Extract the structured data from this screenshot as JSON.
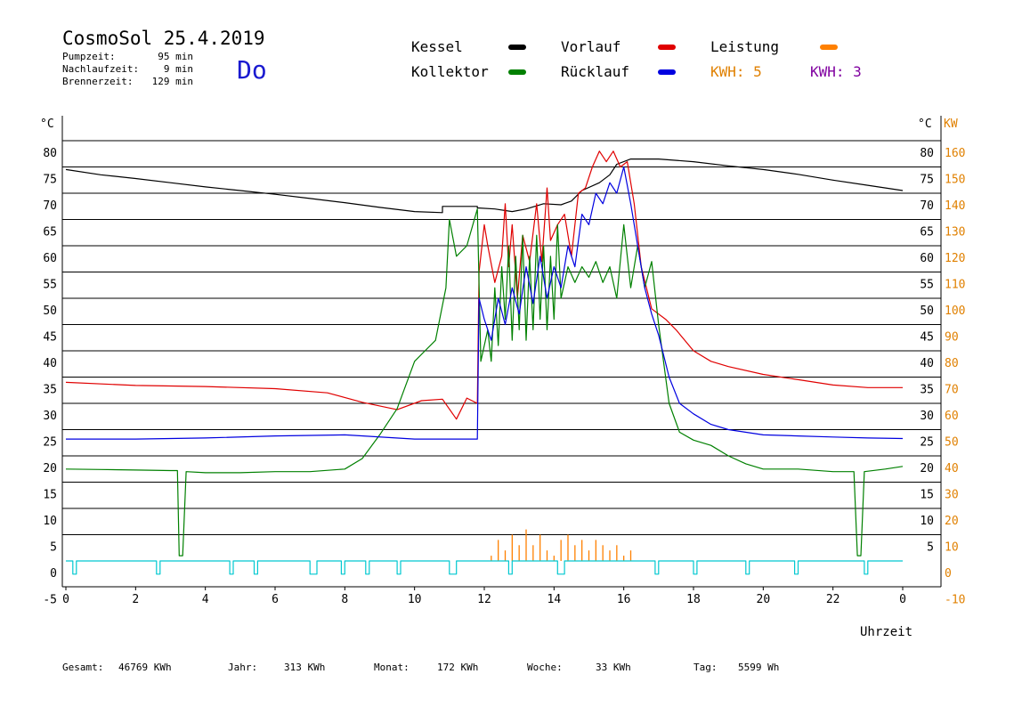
{
  "header": {
    "title": "CosmoSol 25.4.2019",
    "weekday": "Do",
    "stats": [
      {
        "label": "Pumpzeit:",
        "value": "95 min"
      },
      {
        "label": "Nachlaufzeit:",
        "value": "9 min"
      },
      {
        "label": "Brennerzeit:",
        "value": "129 min"
      }
    ]
  },
  "legend": [
    {
      "label": "Kessel",
      "color": "#000000",
      "label_color": "#000000"
    },
    {
      "label": "Vorlauf",
      "color": "#e00000",
      "label_color": "#000000"
    },
    {
      "label": "Leistung",
      "color": "#ff8000",
      "label_color": "#000000"
    },
    {
      "label": "Kollektor",
      "color": "#008000",
      "label_color": "#000000"
    },
    {
      "label": "Rücklauf",
      "color": "#0000e0",
      "label_color": "#000000"
    },
    {
      "label": "KWH: 5",
      "color": "#e08000",
      "label_color": "#e08000"
    },
    {
      "label": "KWH: 3",
      "color": "#8000a0",
      "label_color": "#8000a0"
    }
  ],
  "footer": [
    {
      "label": "Gesamt:",
      "value": "46769 KWh"
    },
    {
      "label": "Jahr:",
      "value": "313 KWh"
    },
    {
      "label": "Monat:",
      "value": "172 KWh"
    },
    {
      "label": "Woche:",
      "value": "33 KWh"
    },
    {
      "label": "Tag:",
      "value": "5599 Wh"
    }
  ],
  "chart_data": {
    "type": "line",
    "xlabel": "Uhrzeit",
    "ylabel_left": "°C",
    "ylabel_right_temp": "°C",
    "ylabel_right_power": "KW",
    "xlim": [
      0,
      24
    ],
    "ylim": [
      -5,
      80
    ],
    "y_ticks_left": [
      "-5",
      "0",
      "5",
      "10",
      "15",
      "20",
      "25",
      "30",
      "35",
      "40",
      "45",
      "50",
      "55",
      "60",
      "65",
      "70",
      "75",
      "80"
    ],
    "y_ticks_right_temp": [
      "5",
      "10",
      "15",
      "20",
      "25",
      "30",
      "35",
      "40",
      "45",
      "50",
      "55",
      "60",
      "65",
      "70",
      "75",
      "80"
    ],
    "y_ticks_right_power": [
      "-10",
      "0",
      "10",
      "20",
      "30",
      "40",
      "50",
      "60",
      "70",
      "80",
      "90",
      "100",
      "110",
      "120",
      "130",
      "140",
      "150",
      "160"
    ],
    "x_ticks": [
      "0",
      "2",
      "4",
      "6",
      "8",
      "10",
      "12",
      "14",
      "16",
      "18",
      "20",
      "22",
      "0"
    ],
    "grid": "horizontal",
    "series": [
      {
        "name": "Kessel",
        "color": "#000000",
        "x": [
          0,
          1,
          2,
          3,
          4,
          5,
          6,
          7,
          8,
          9,
          10,
          10.8,
          10.8,
          11.8,
          11.8,
          12.3,
          12.8,
          13.2,
          13.7,
          14.2,
          14.5,
          14.8,
          15.3,
          15.6,
          15.8,
          16.2,
          17,
          18,
          19,
          20,
          21,
          22,
          23,
          24
        ],
        "y": [
          74.5,
          73.5,
          72.8,
          72,
          71.2,
          70.5,
          69.8,
          69,
          68.2,
          67.3,
          66.5,
          66.3,
          67.5,
          67.5,
          67.2,
          67,
          66.5,
          67,
          68,
          67.8,
          68.5,
          70.5,
          72,
          73.5,
          75.5,
          76.5,
          76.5,
          76,
          75.2,
          74.5,
          73.6,
          72.5,
          71.5,
          70.5
        ]
      },
      {
        "name": "Vorlauf",
        "color": "#e00000",
        "x": [
          0,
          2,
          4,
          6,
          7.5,
          8.5,
          9.5,
          10.2,
          10.8,
          11.2,
          11.5,
          11.8,
          11.85,
          12,
          12.1,
          12.3,
          12.5,
          12.6,
          12.7,
          12.8,
          12.95,
          13.1,
          13.3,
          13.5,
          13.65,
          13.8,
          13.9,
          14.1,
          14.3,
          14.5,
          14.7,
          14.9,
          15.1,
          15.3,
          15.5,
          15.7,
          15.9,
          16.1,
          16.3,
          16.5,
          16.8,
          17.2,
          17.5,
          18,
          18.5,
          19,
          20,
          21,
          22,
          23,
          24
        ],
        "y": [
          34,
          33.4,
          33.2,
          32.8,
          32,
          30.2,
          28.8,
          30.5,
          30.8,
          27,
          31,
          30,
          55,
          64,
          60,
          53,
          58,
          68,
          56,
          64,
          50,
          62,
          57,
          68,
          57,
          71,
          61,
          64,
          66,
          58,
          70,
          71,
          75,
          78,
          76,
          78,
          75,
          76,
          68,
          56,
          48,
          46,
          44,
          40,
          38,
          37,
          35.5,
          34.5,
          33.5,
          33,
          33
        ]
      },
      {
        "name": "Kollektor",
        "color": "#008000",
        "x": [
          0,
          1,
          2,
          3,
          3.2,
          3.25,
          3.35,
          3.45,
          4,
          5,
          6,
          7,
          8,
          8.5,
          9,
          9.5,
          10,
          10.3,
          10.6,
          10.9,
          11,
          11.2,
          11.5,
          11.8,
          11.9,
          12.1,
          12.2,
          12.3,
          12.4,
          12.5,
          12.6,
          12.7,
          12.8,
          12.9,
          13,
          13.1,
          13.2,
          13.3,
          13.4,
          13.5,
          13.6,
          13.7,
          13.8,
          13.9,
          14,
          14.1,
          14.2,
          14.4,
          14.6,
          14.8,
          15,
          15.2,
          15.4,
          15.6,
          15.8,
          16,
          16.2,
          16.4,
          16.6,
          16.8,
          17,
          17.3,
          17.6,
          18,
          18.5,
          19,
          19.5,
          20,
          21,
          22,
          22.6,
          22.7,
          22.8,
          22.9,
          23.5,
          24
        ],
        "y": [
          17.5,
          17.4,
          17.3,
          17.2,
          17.2,
          1,
          1,
          17,
          16.8,
          16.8,
          17,
          17,
          17.5,
          19.5,
          24,
          29,
          38,
          40,
          42,
          52,
          65,
          58,
          60,
          67,
          38,
          44,
          38,
          52,
          41,
          56,
          46,
          60,
          42,
          58,
          44,
          62,
          42,
          58,
          44,
          62,
          46,
          60,
          44,
          58,
          46,
          64,
          50,
          56,
          53,
          56,
          54,
          57,
          53,
          56,
          50,
          64,
          52,
          60,
          52,
          57,
          45,
          30,
          24.5,
          23,
          22,
          20,
          18.5,
          17.5,
          17.5,
          17,
          17,
          1,
          1,
          17,
          17.5,
          18
        ]
      },
      {
        "name": "Rücklauf",
        "color": "#0000e0",
        "x": [
          0,
          2,
          4,
          6,
          8,
          10,
          11,
          11.8,
          11.85,
          12,
          12.2,
          12.4,
          12.6,
          12.8,
          13,
          13.2,
          13.4,
          13.6,
          13.8,
          14,
          14.2,
          14.4,
          14.6,
          14.8,
          15,
          15.2,
          15.4,
          15.6,
          15.8,
          16,
          16.2,
          16.4,
          16.6,
          16.8,
          17,
          17.3,
          17.6,
          18,
          18.5,
          19,
          20,
          21,
          22,
          23,
          24
        ],
        "y": [
          23.2,
          23.2,
          23.4,
          23.8,
          24,
          23.2,
          23.2,
          23.2,
          50,
          46,
          42,
          50,
          45,
          52,
          47,
          56,
          49,
          58,
          50,
          56,
          52,
          60,
          56,
          66,
          64,
          70,
          68,
          72,
          70,
          75,
          68,
          60,
          52,
          47,
          43,
          35,
          30,
          28,
          26,
          25,
          24,
          23.8,
          23.6,
          23.4,
          23.3
        ]
      },
      {
        "name": "Leistung",
        "color": "#ff8000",
        "axis": "power",
        "x": [
          11.8,
          12.2,
          12.4,
          12.6,
          12.8,
          13.0,
          13.2,
          13.4,
          13.6,
          13.8,
          14.0,
          14.2,
          14.4,
          14.6,
          14.8,
          15.0,
          15.2,
          15.4,
          15.6,
          15.8,
          16.0,
          16.2,
          16.4
        ],
        "y": [
          0,
          2,
          8,
          4,
          10,
          6,
          12,
          6,
          10,
          4,
          2,
          8,
          10,
          6,
          8,
          4,
          8,
          6,
          4,
          6,
          2,
          4,
          0
        ]
      },
      {
        "name": "Brenner",
        "color": "#00c8d0",
        "x": [
          0,
          0.2,
          0.2,
          0.3,
          0.3,
          2.6,
          2.6,
          2.7,
          2.7,
          4.7,
          4.7,
          4.8,
          4.8,
          5.4,
          5.4,
          5.5,
          5.5,
          7.0,
          7.0,
          7.2,
          7.2,
          7.9,
          7.9,
          8.0,
          8.0,
          8.6,
          8.6,
          8.7,
          8.7,
          9.5,
          9.5,
          9.6,
          9.6,
          11.0,
          11.0,
          11.2,
          11.2,
          12.7,
          12.7,
          12.8,
          12.8,
          14.1,
          14.1,
          14.3,
          14.3,
          16.9,
          16.9,
          17.0,
          17.0,
          18.0,
          18.0,
          18.1,
          18.1,
          19.5,
          19.5,
          19.6,
          19.6,
          20.9,
          20.9,
          21.0,
          21.0,
          22.9,
          22.9,
          23.0,
          23.0,
          24
        ],
        "y": [
          0,
          0,
          -2.5,
          -2.5,
          0,
          0,
          -2.5,
          -2.5,
          0,
          0,
          -2.5,
          -2.5,
          0,
          0,
          -2.5,
          -2.5,
          0,
          0,
          -2.5,
          -2.5,
          0,
          0,
          -2.5,
          -2.5,
          0,
          0,
          -2.5,
          -2.5,
          0,
          0,
          -2.5,
          -2.5,
          0,
          0,
          -2.5,
          -2.5,
          0,
          0,
          -2.5,
          -2.5,
          0,
          0,
          -2.5,
          -2.5,
          0,
          0,
          -2.5,
          -2.5,
          0,
          0,
          -2.5,
          -2.5,
          0,
          0,
          -2.5,
          -2.5,
          0,
          0,
          -2.5,
          -2.5,
          0,
          0,
          -2.5,
          -2.5,
          0,
          0
        ]
      }
    ]
  }
}
